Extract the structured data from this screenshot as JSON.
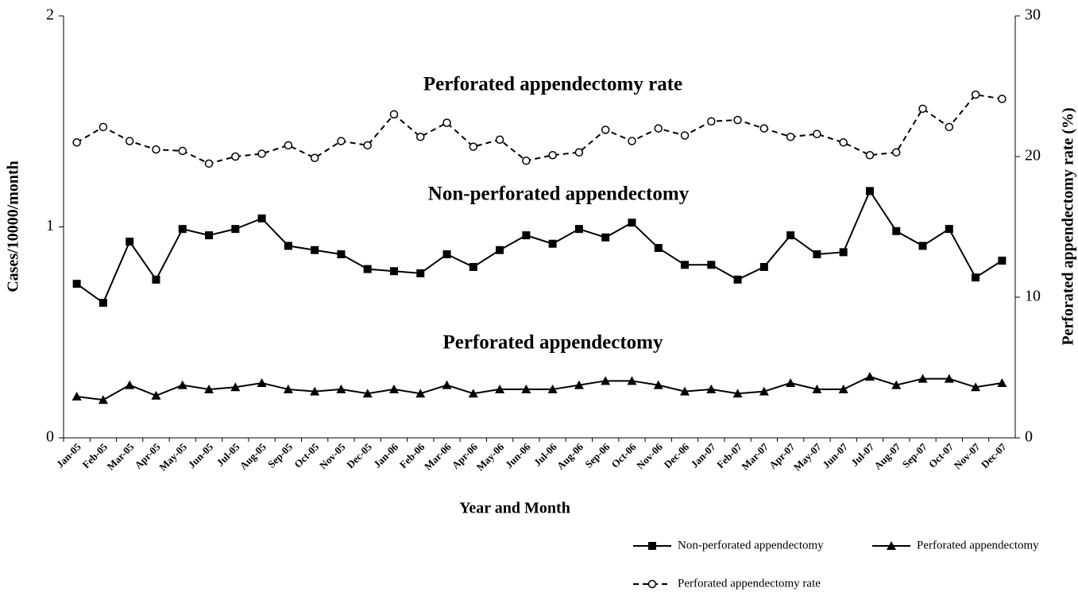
{
  "chart_data": {
    "type": "line",
    "x_label": "Year and Month",
    "y_label": "Cases/10000/month",
    "y2_label": "Perforated appendectomy rate (%)",
    "annotations": [
      "Perforated appendectomy rate",
      "Non-perforated appendectomy",
      "Perforated appendectomy"
    ],
    "categories": [
      "Jan-05",
      "Feb-05",
      "Mar-05",
      "Apr-05",
      "May-05",
      "Jun-05",
      "Jul-05",
      "Aug-05",
      "Sep-05",
      "Oct-05",
      "Nov-05",
      "Dec-05",
      "Jan-06",
      "Feb-06",
      "Mar-06",
      "Apr-06",
      "May-06",
      "Jun-06",
      "Jul-06",
      "Aug-06",
      "Sep-06",
      "Oct-06",
      "Nov-06",
      "Dec-06",
      "Jan-07",
      "Feb-07",
      "Mar-07",
      "Apr-07",
      "May-07",
      "Jun-07",
      "Jul-07",
      "Aug-07",
      "Sep-07",
      "Oct-07",
      "Nov-07",
      "Dec-07"
    ],
    "ylim": [
      0,
      2
    ],
    "yticks": [
      0,
      1,
      2
    ],
    "y2lim": [
      0,
      30
    ],
    "y2ticks": [
      0,
      10,
      20,
      30
    ],
    "series": [
      {
        "name": "Non-perforated appendectomy",
        "color": "#000000",
        "marker": "square",
        "dashed": false,
        "values": [
          0.73,
          0.64,
          0.93,
          0.75,
          0.99,
          0.96,
          0.99,
          1.04,
          0.91,
          0.89,
          0.87,
          0.8,
          0.79,
          0.78,
          0.87,
          0.81,
          0.89,
          0.96,
          0.92,
          0.99,
          0.95,
          1.02,
          0.9,
          0.82,
          0.82,
          0.75,
          0.81,
          0.96,
          0.87,
          0.88,
          1.17,
          0.98,
          0.91,
          0.99,
          0.76,
          0.84
        ]
      },
      {
        "name": "Perforated appendectomy",
        "color": "#000000",
        "marker": "triangle",
        "dashed": false,
        "values": [
          0.196,
          0.18,
          0.25,
          0.2,
          0.25,
          0.23,
          0.24,
          0.26,
          0.23,
          0.22,
          0.23,
          0.21,
          0.23,
          0.21,
          0.25,
          0.21,
          0.23,
          0.23,
          0.23,
          0.25,
          0.27,
          0.27,
          0.25,
          0.22,
          0.23,
          0.21,
          0.22,
          0.26,
          0.23,
          0.23,
          0.29,
          0.25,
          0.28,
          0.28,
          0.24,
          0.26
        ]
      },
      {
        "name": "Perforated appendectomy rate",
        "color": "#000000",
        "marker": "circle-open",
        "dashed": true,
        "axis": "y2",
        "values": [
          21.0,
          22.1,
          21.1,
          20.5,
          20.4,
          19.5,
          20.0,
          20.2,
          20.8,
          19.9,
          21.1,
          20.8,
          23.0,
          21.4,
          22.4,
          20.7,
          21.2,
          19.7,
          20.1,
          20.3,
          21.9,
          21.1,
          22.0,
          21.5,
          22.5,
          22.6,
          22.0,
          21.4,
          21.6,
          21.0,
          20.1,
          20.3,
          23.4,
          22.1,
          24.4,
          24.1
        ]
      }
    ]
  }
}
